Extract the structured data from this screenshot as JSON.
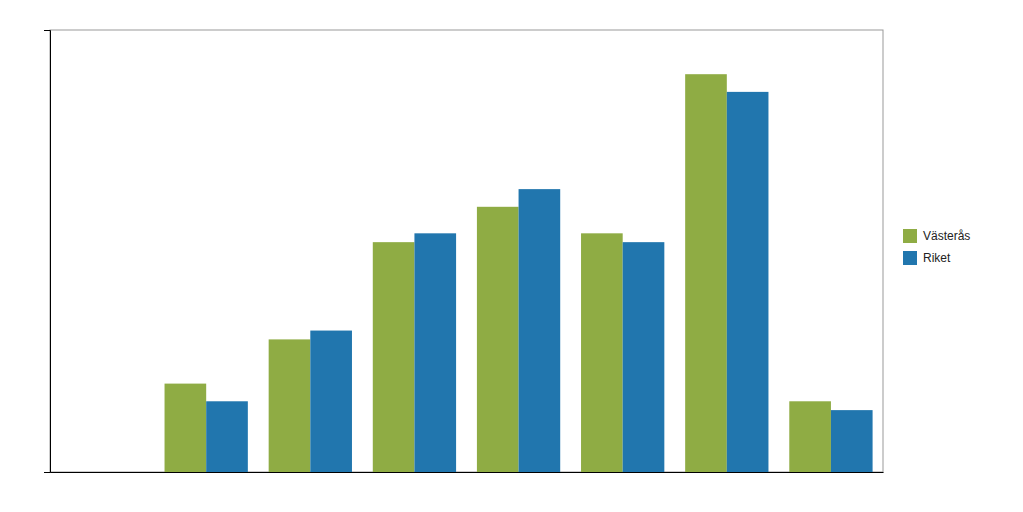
{
  "chart_data": {
    "type": "bar",
    "categories": [
      null,
      null,
      null,
      null,
      null,
      null,
      null,
      null
    ],
    "series": [
      {
        "name": "Västerås",
        "color": "#8fac44",
        "values": [
          0,
          10,
          15,
          26,
          30,
          27,
          45,
          8
        ]
      },
      {
        "name": "Riket",
        "color": "#2176ae",
        "values": [
          0,
          8,
          16,
          27,
          32,
          26,
          43,
          7
        ]
      }
    ],
    "ylim": [
      0,
      50
    ],
    "yticks": [],
    "grid": false,
    "legend": "right",
    "tick_labels": false
  }
}
